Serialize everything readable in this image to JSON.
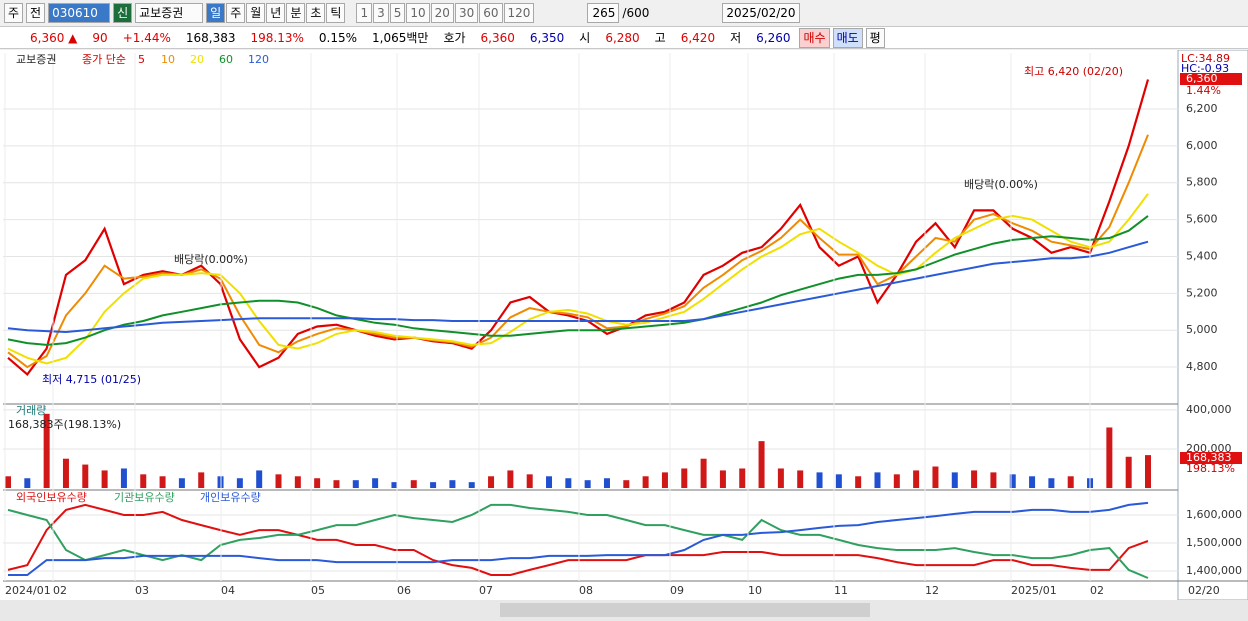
{
  "toolbar": {
    "left": [
      "주",
      "전"
    ],
    "code": "030610",
    "tag": "신",
    "name": "교보증권",
    "periods": [
      "일",
      "주",
      "월",
      "년",
      "분",
      "초",
      "틱"
    ],
    "steps": [
      "1",
      "3",
      "5",
      "10",
      "20",
      "30",
      "60",
      "120"
    ],
    "count": "265",
    "max": "/600",
    "date": "2025/02/20"
  },
  "quote": {
    "items": [
      "6,360 ▲",
      "90",
      "+1.44%",
      "168,383",
      "198.13%",
      "0.15%",
      "1,065백만",
      "호가",
      "6,360",
      "6,350",
      "시",
      "6,280",
      "고",
      "6,420",
      "저",
      "6,260"
    ],
    "buttons": [
      "매수",
      "매도",
      "평"
    ]
  },
  "chart_data": [
    {
      "type": "line",
      "name": "교보증권",
      "legend_prefix": "종가 단순",
      "series": [
        {
          "name": "5",
          "color": "#e00000",
          "values": [
            4850,
            4760,
            4900,
            5300,
            5380,
            5550,
            5250,
            5300,
            5320,
            5300,
            5350,
            5250,
            4950,
            4800,
            4850,
            4980,
            5020,
            5030,
            5000,
            4970,
            4950,
            4960,
            4940,
            4930,
            4900,
            5000,
            5150,
            5180,
            5100,
            5080,
            5050,
            4980,
            5020,
            5080,
            5100,
            5150,
            5300,
            5350,
            5420,
            5450,
            5550,
            5680,
            5450,
            5350,
            5400,
            5150,
            5300,
            5480,
            5580,
            5450,
            5650,
            5650,
            5550,
            5500,
            5420,
            5450,
            5420,
            5700,
            6000,
            6360
          ]
        },
        {
          "name": "10",
          "color": "#f08a00",
          "values": [
            4880,
            4800,
            4860,
            5080,
            5200,
            5350,
            5280,
            5290,
            5310,
            5300,
            5330,
            5280,
            5080,
            4920,
            4880,
            4940,
            4980,
            5010,
            5000,
            4980,
            4960,
            4960,
            4945,
            4935,
            4910,
            4960,
            5070,
            5120,
            5100,
            5090,
            5070,
            5010,
            5020,
            5060,
            5090,
            5130,
            5230,
            5300,
            5380,
            5430,
            5500,
            5600,
            5500,
            5410,
            5410,
            5250,
            5300,
            5400,
            5500,
            5480,
            5600,
            5630,
            5580,
            5540,
            5480,
            5460,
            5440,
            5560,
            5800,
            6060
          ]
        },
        {
          "name": "20",
          "color": "#f0e000",
          "values": [
            4900,
            4850,
            4820,
            4850,
            4950,
            5100,
            5200,
            5280,
            5300,
            5300,
            5310,
            5300,
            5200,
            5050,
            4920,
            4900,
            4930,
            4980,
            5000,
            4990,
            4970,
            4960,
            4950,
            4940,
            4920,
            4930,
            4990,
            5060,
            5100,
            5110,
            5090,
            5050,
            5030,
            5040,
            5070,
            5100,
            5170,
            5250,
            5330,
            5400,
            5450,
            5520,
            5550,
            5480,
            5420,
            5350,
            5300,
            5330,
            5420,
            5500,
            5550,
            5600,
            5620,
            5600,
            5540,
            5480,
            5450,
            5480,
            5600,
            5740
          ]
        },
        {
          "name": "60",
          "color": "#10902a",
          "values": [
            4950,
            4930,
            4920,
            4930,
            4960,
            5000,
            5030,
            5050,
            5080,
            5100,
            5120,
            5140,
            5150,
            5160,
            5160,
            5150,
            5120,
            5080,
            5060,
            5040,
            5030,
            5010,
            5000,
            4990,
            4980,
            4970,
            4970,
            4980,
            4990,
            5000,
            5000,
            5000,
            5010,
            5020,
            5030,
            5040,
            5060,
            5090,
            5120,
            5150,
            5190,
            5220,
            5250,
            5280,
            5300,
            5300,
            5310,
            5330,
            5370,
            5410,
            5440,
            5470,
            5490,
            5500,
            5510,
            5500,
            5490,
            5500,
            5540,
            5620
          ]
        },
        {
          "name": "120",
          "color": "#2a5ad8",
          "values": [
            5010,
            5000,
            4995,
            4990,
            5000,
            5010,
            5020,
            5030,
            5040,
            5045,
            5050,
            5055,
            5060,
            5065,
            5065,
            5065,
            5065,
            5065,
            5065,
            5060,
            5060,
            5055,
            5055,
            5050,
            5050,
            5050,
            5050,
            5050,
            5050,
            5050,
            5050,
            5050,
            5050,
            5050,
            5050,
            5050,
            5060,
            5080,
            5100,
            5120,
            5140,
            5160,
            5180,
            5200,
            5220,
            5240,
            5260,
            5280,
            5300,
            5320,
            5340,
            5360,
            5370,
            5380,
            5390,
            5390,
            5400,
            5420,
            5450,
            5480
          ]
        }
      ],
      "ylim": [
        4605,
        6493
      ],
      "yticks": [
        {
          "value": 4800,
          "label": "4,800"
        },
        {
          "value": 5000,
          "label": "5,000"
        },
        {
          "value": 5200,
          "label": "5,200"
        },
        {
          "value": 5400,
          "label": "5,400"
        },
        {
          "value": 5600,
          "label": "5,600"
        },
        {
          "value": 5800,
          "label": "5,800"
        },
        {
          "value": 6000,
          "label": "6,000"
        },
        {
          "value": 6200,
          "label": "6,200"
        }
      ],
      "grid": true,
      "annotations": {
        "high": "최고 6,420 (02/20)",
        "low": "최저 4,715 (01/25)",
        "ex_div": "배당락(0.00%)"
      },
      "last": {
        "price": "6,360",
        "change": "1.44%",
        "lc": "LC:34.89",
        "hc": "HC:-0.93"
      }
    },
    {
      "type": "bar",
      "title": "거래량",
      "subtitle": "168,383주(198.13%)",
      "color": "#d01818",
      "values": [
        60000,
        50000,
        380000,
        150000,
        120000,
        90000,
        100000,
        70000,
        60000,
        50000,
        80000,
        60000,
        50000,
        90000,
        70000,
        60000,
        50000,
        40000,
        40000,
        50000,
        30000,
        40000,
        30000,
        40000,
        30000,
        60000,
        90000,
        70000,
        60000,
        50000,
        40000,
        50000,
        40000,
        60000,
        80000,
        100000,
        150000,
        90000,
        100000,
        240000,
        100000,
        90000,
        80000,
        70000,
        60000,
        80000,
        70000,
        90000,
        110000,
        80000,
        90000,
        80000,
        70000,
        60000,
        50000,
        60000,
        50000,
        310000,
        160000,
        168383
      ],
      "ylim": [
        0,
        420000
      ],
      "yticks": [
        {
          "value": 200000,
          "label": "200,000"
        },
        {
          "value": 400000,
          "label": "400,000"
        }
      ],
      "last": {
        "value": "168,383",
        "ratio": "198.13%"
      }
    },
    {
      "type": "line",
      "series": [
        {
          "name": "외국인보유수량",
          "color": "#e01010",
          "values": [
            1404000,
            1421000,
            1546000,
            1618000,
            1636000,
            1618000,
            1600000,
            1600000,
            1611000,
            1582000,
            1564000,
            1546000,
            1529000,
            1546000,
            1546000,
            1529000,
            1511000,
            1511000,
            1493000,
            1493000,
            1475000,
            1475000,
            1439000,
            1421000,
            1411000,
            1386000,
            1386000,
            1404000,
            1421000,
            1439000,
            1439000,
            1439000,
            1439000,
            1457000,
            1457000,
            1457000,
            1457000,
            1468000,
            1468000,
            1468000,
            1457000,
            1457000,
            1457000,
            1457000,
            1457000,
            1446000,
            1432000,
            1421000,
            1421000,
            1421000,
            1421000,
            1439000,
            1439000,
            1421000,
            1421000,
            1411000,
            1404000,
            1404000,
            1482000,
            1507000
          ]
        },
        {
          "name": "기관보유수량",
          "color": "#30a060",
          "values": [
            1618000,
            1600000,
            1582000,
            1475000,
            1439000,
            1457000,
            1475000,
            1457000,
            1439000,
            1457000,
            1439000,
            1493000,
            1511000,
            1518000,
            1529000,
            1529000,
            1546000,
            1564000,
            1564000,
            1582000,
            1600000,
            1589000,
            1582000,
            1575000,
            1600000,
            1636000,
            1636000,
            1625000,
            1618000,
            1611000,
            1600000,
            1600000,
            1582000,
            1564000,
            1564000,
            1546000,
            1529000,
            1529000,
            1511000,
            1582000,
            1546000,
            1529000,
            1529000,
            1511000,
            1493000,
            1482000,
            1475000,
            1475000,
            1475000,
            1482000,
            1468000,
            1457000,
            1457000,
            1446000,
            1446000,
            1457000,
            1475000,
            1482000,
            1404000,
            1375000
          ]
        },
        {
          "name": "개인보유수량",
          "color": "#2a5ad8",
          "values": [
            1386000,
            1386000,
            1439000,
            1439000,
            1439000,
            1446000,
            1446000,
            1454000,
            1454000,
            1454000,
            1454000,
            1454000,
            1454000,
            1446000,
            1439000,
            1439000,
            1439000,
            1432000,
            1432000,
            1432000,
            1432000,
            1432000,
            1432000,
            1439000,
            1439000,
            1439000,
            1446000,
            1446000,
            1454000,
            1454000,
            1454000,
            1457000,
            1457000,
            1457000,
            1457000,
            1475000,
            1511000,
            1529000,
            1529000,
            1536000,
            1539000,
            1546000,
            1554000,
            1561000,
            1564000,
            1575000,
            1582000,
            1589000,
            1596000,
            1604000,
            1611000,
            1611000,
            1611000,
            1618000,
            1618000,
            1611000,
            1611000,
            1618000,
            1636000,
            1643000
          ]
        }
      ],
      "ylim": [
        1368000,
        1682000
      ],
      "yticks": [
        {
          "value": 1400000,
          "label": "1,400,000"
        },
        {
          "value": 1500000,
          "label": "1,500,000"
        },
        {
          "value": 1600000,
          "label": "1,600,000"
        }
      ]
    }
  ],
  "x_labels": [
    "2024/01",
    "02",
    "03",
    "04",
    "05",
    "06",
    "07",
    "08",
    "09",
    "10",
    "11",
    "12",
    "2025/01",
    "02"
  ],
  "x_last": "02/20"
}
